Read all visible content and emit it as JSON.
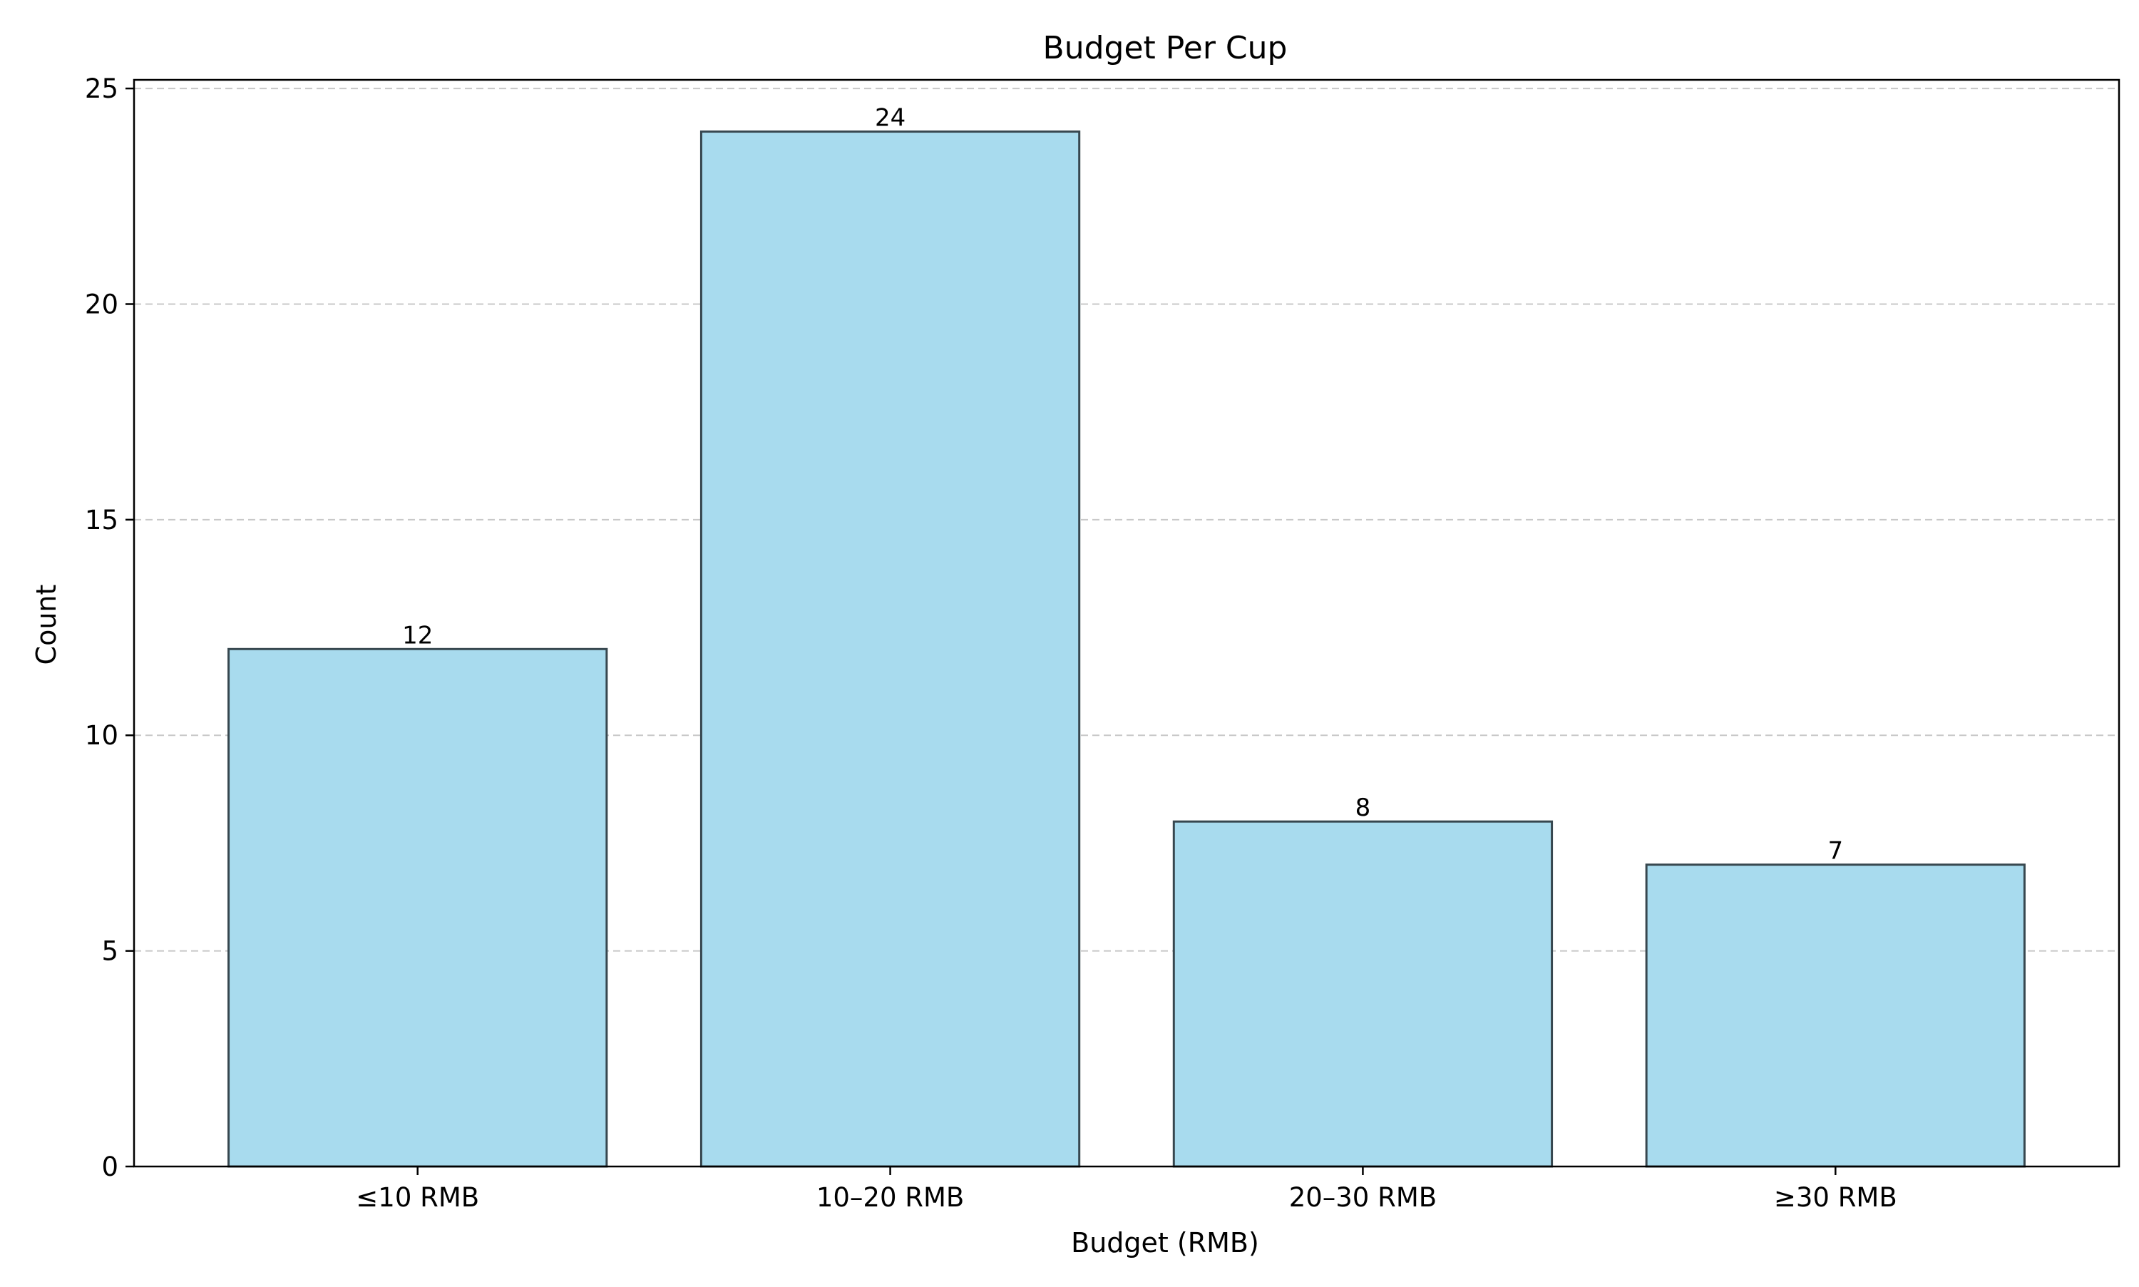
{
  "chart_data": {
    "type": "bar",
    "title": "Budget Per Cup",
    "xlabel": "Budget (RMB)",
    "ylabel": "Count",
    "categories": [
      "≤10 RMB",
      "10–20 RMB",
      "20–30 RMB",
      "≥30 RMB"
    ],
    "values": [
      12,
      24,
      8,
      7
    ],
    "value_labels": [
      "12",
      "24",
      "8",
      "7"
    ],
    "ylim": [
      0,
      25.2
    ],
    "yticks": [
      0,
      5,
      10,
      15,
      20,
      25
    ],
    "ytick_labels": [
      "0",
      "5",
      "10",
      "15",
      "20",
      "25"
    ],
    "grid": "y-dashed",
    "legend": "none",
    "colors": {
      "bar_fill": "#a8dbee",
      "bar_edge": "#37474f",
      "grid": "#c8c8c8",
      "axis": "#000000"
    }
  }
}
